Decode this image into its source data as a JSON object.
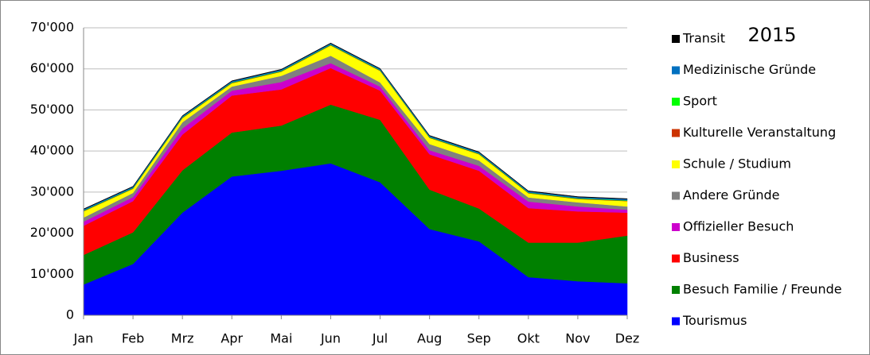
{
  "chart_data": {
    "type": "stacked_area",
    "title": "2015",
    "categories": [
      "Jan",
      "Feb",
      "Mrz",
      "Apr",
      "Mai",
      "Jun",
      "Jul",
      "Aug",
      "Sep",
      "Okt",
      "Nov",
      "Dez"
    ],
    "ylim": [
      0,
      70000
    ],
    "yticks": [
      0,
      {
        "value": 10000,
        "label": "10'000"
      },
      {
        "value": 20000,
        "label": "20'000"
      },
      {
        "value": 30000,
        "label": "30'000"
      },
      {
        "value": 40000,
        "label": "40'000"
      },
      {
        "value": 50000,
        "label": "50'000"
      },
      {
        "value": 60000,
        "label": "60'000"
      },
      {
        "value": 70000,
        "label": "70'000"
      }
    ],
    "grid": true,
    "series": [
      {
        "name": "Tourismus",
        "color": "#0000ff",
        "values": [
          7500,
          12500,
          25000,
          33800,
          35200,
          37000,
          32400,
          21000,
          18000,
          9300,
          8300,
          7800
        ]
      },
      {
        "name": "Besuch Familie / Freunde",
        "color": "#008000",
        "values": [
          7200,
          7700,
          10300,
          10700,
          11000,
          14300,
          15200,
          9600,
          8000,
          8400,
          9400,
          11600
        ]
      },
      {
        "name": "Business",
        "color": "#ff0000",
        "values": [
          7100,
          7600,
          8700,
          9000,
          8800,
          8900,
          7100,
          8600,
          9200,
          8400,
          7600,
          5600
        ]
      },
      {
        "name": "Offizieller Besuch",
        "color": "#cc00cc",
        "values": [
          1000,
          1000,
          1500,
          1200,
          1800,
          1200,
          1000,
          1000,
          1200,
          1600,
          1200,
          700
        ]
      },
      {
        "name": "Andere Gründe",
        "color": "#808080",
        "values": [
          1000,
          1000,
          1500,
          1000,
          1500,
          1800,
          1000,
          1500,
          1300,
          1000,
          1000,
          800
        ]
      },
      {
        "name": "Schule / Studium",
        "color": "#ffff00",
        "values": [
          1500,
          1000,
          1000,
          800,
          1000,
          2500,
          2800,
          1500,
          1500,
          1000,
          800,
          1300
        ]
      },
      {
        "name": "Kulturelle Veranstaltung",
        "color": "#cc3300",
        "values": [
          100,
          100,
          100,
          100,
          100,
          100,
          100,
          100,
          100,
          100,
          100,
          100
        ]
      },
      {
        "name": "Sport",
        "color": "#00ff00",
        "values": [
          100,
          100,
          100,
          100,
          100,
          100,
          100,
          100,
          100,
          100,
          100,
          100
        ]
      },
      {
        "name": "Medizinische Gründe",
        "color": "#0070c0",
        "values": [
          300,
          300,
          300,
          300,
          300,
          300,
          300,
          300,
          300,
          300,
          300,
          300
        ]
      },
      {
        "name": "Transit",
        "color": "#000000",
        "values": [
          100,
          100,
          100,
          100,
          100,
          100,
          100,
          100,
          100,
          100,
          100,
          100
        ]
      }
    ]
  }
}
